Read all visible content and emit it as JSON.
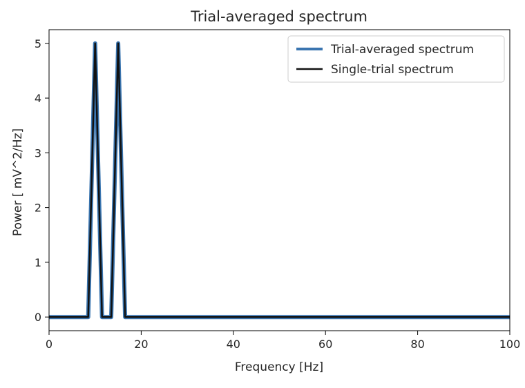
{
  "chart_data": {
    "type": "line",
    "title": "Trial-averaged spectrum",
    "xlabel": "Frequency [Hz]",
    "ylabel": "Power [ mV^2/Hz]",
    "xlim": [
      0,
      100
    ],
    "ylim": [
      -0.25,
      5.25
    ],
    "xticks": [
      0,
      20,
      40,
      60,
      80,
      100
    ],
    "yticks": [
      0,
      1,
      2,
      3,
      4,
      5
    ],
    "grid": false,
    "legend_position": "top-right",
    "series": [
      {
        "name": "Trial-averaged spectrum",
        "color": "#3a75b0",
        "x": [
          0,
          8.5,
          10,
          11.5,
          13.5,
          15,
          16.5,
          100
        ],
        "y": [
          0,
          0,
          5,
          0,
          0,
          5,
          0,
          0
        ]
      },
      {
        "name": "Single-trial spectrum",
        "color": "#111111",
        "x": [
          0,
          8.5,
          10,
          11.5,
          13.5,
          15,
          16.5,
          100
        ],
        "y": [
          0,
          0,
          5,
          0,
          0,
          5,
          0,
          0
        ]
      }
    ]
  }
}
